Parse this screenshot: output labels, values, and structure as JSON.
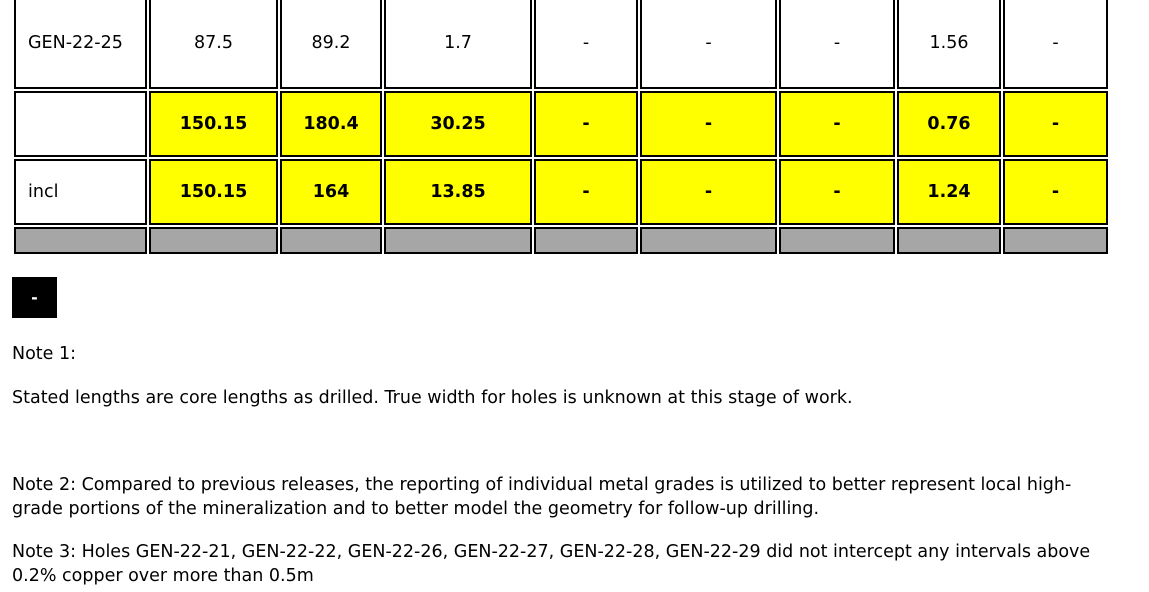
{
  "table": {
    "rows": [
      {
        "label": "GEN-22-25",
        "cells": [
          "87.5",
          "89.2",
          "1.7",
          "-",
          "-",
          "-",
          "1.56",
          "-"
        ],
        "highlight": false
      },
      {
        "label": "",
        "cells": [
          "150.15",
          "180.4",
          "30.25",
          "-",
          "-",
          "-",
          "0.76",
          "-"
        ],
        "highlight": true
      },
      {
        "label": "incl",
        "cells": [
          "150.15",
          "164",
          "13.85",
          "-",
          "-",
          "-",
          "1.24",
          "-"
        ],
        "highlight": true
      }
    ]
  },
  "colors": {
    "highlight": "#ffff00",
    "separator": "#a6a6a6",
    "button": "#000000"
  },
  "toggle_button": {
    "label": "-"
  },
  "notes": {
    "note1_title": "Note 1:",
    "note1_text": "Stated lengths are core lengths as drilled. True width for holes is unknown at this stage of work.",
    "note2": "Note 2: Compared to previous releases, the reporting of individual metal grades is utilized to better represent local high-grade portions of the mineralization and to better model the geometry for follow-up drilling.",
    "note3": "Note 3: Holes GEN-22-21, GEN-22-22, GEN-22-26, GEN-22-27, GEN-22-28, GEN-22-29 did not intercept any intervals above 0.2% copper over more than 0.5m"
  }
}
